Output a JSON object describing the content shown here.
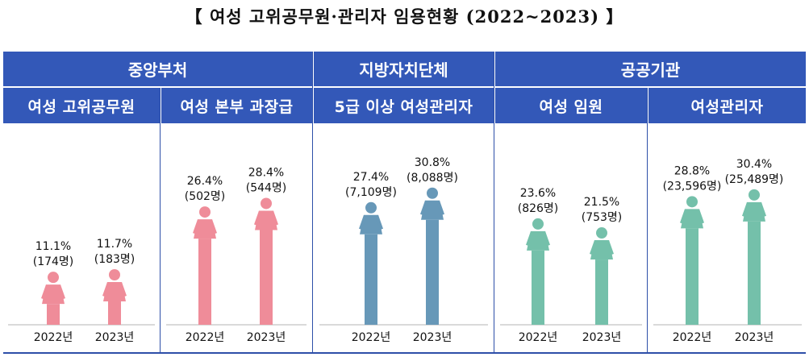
{
  "title": "【 여성 고위공무원·관리자 임용현황 (2022~2023) 】",
  "groups": [
    {
      "label": "중앙부처"
    },
    {
      "label": "지방자치단체"
    },
    {
      "label": "공공기관"
    }
  ],
  "chart_data": {
    "type": "bar",
    "categories": [
      "2022년",
      "2023년"
    ],
    "panels": [
      {
        "label": "여성 고위공무원",
        "group": "중앙부처",
        "color": "#ef8c99",
        "values": [
          11.1,
          11.7
        ],
        "value_labels": [
          "11.1%",
          "11.7%"
        ],
        "counts": [
          "(174명)",
          "(183명)"
        ]
      },
      {
        "label": "여성 본부 과장급",
        "group": "중앙부처",
        "color": "#ef8c99",
        "values": [
          26.4,
          28.4
        ],
        "value_labels": [
          "26.4%",
          "28.4%"
        ],
        "counts": [
          "(502명)",
          "(544명)"
        ]
      },
      {
        "label": "5급 이상 여성관리자",
        "group": "지방자치단체",
        "color": "#6798b8",
        "values": [
          27.4,
          30.8
        ],
        "value_labels": [
          "27.4%",
          "30.8%"
        ],
        "counts": [
          "(7,109명)",
          "(8,088명)"
        ]
      },
      {
        "label": "여성 임원",
        "group": "공공기관",
        "color": "#74c0aa",
        "values": [
          23.6,
          21.5
        ],
        "value_labels": [
          "23.6%",
          "21.5%"
        ],
        "counts": [
          "(826명)",
          "(753명)"
        ]
      },
      {
        "label": "여성관리자",
        "group": "공공기관",
        "color": "#74c0aa",
        "values": [
          28.8,
          30.4
        ],
        "value_labels": [
          "28.8%",
          "30.4%"
        ],
        "counts": [
          "(23,596명)",
          "(25,489명)"
        ]
      }
    ]
  }
}
